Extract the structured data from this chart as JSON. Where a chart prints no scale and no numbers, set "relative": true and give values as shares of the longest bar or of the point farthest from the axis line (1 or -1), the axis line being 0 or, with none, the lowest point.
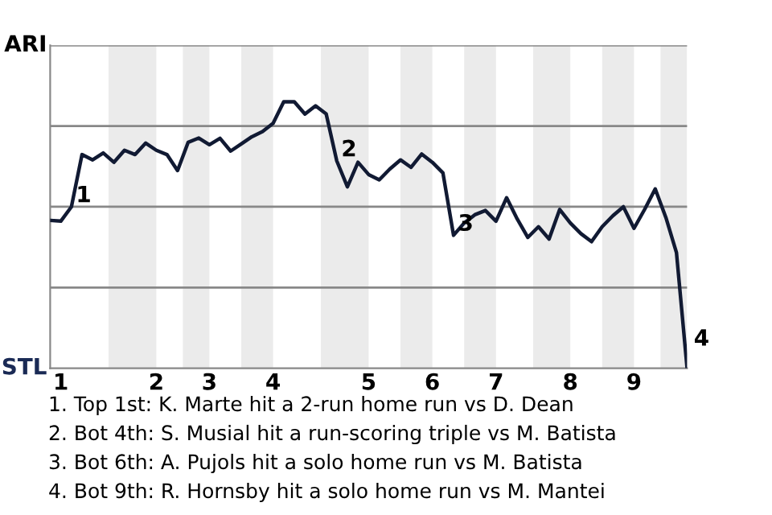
{
  "chart_data": {
    "type": "line",
    "relative": true,
    "categories": [
      null,
      "1",
      null,
      null,
      null,
      null,
      null,
      null,
      null,
      null,
      "2",
      null,
      null,
      null,
      null,
      "3",
      null,
      null,
      null,
      null,
      null,
      "4",
      null,
      null,
      null,
      null,
      null,
      null,
      null,
      null,
      "5",
      null,
      null,
      null,
      null,
      null,
      "6",
      null,
      null,
      null,
      null,
      null,
      "7",
      null,
      null,
      null,
      null,
      null,
      null,
      "8",
      null,
      null,
      null,
      null,
      null,
      "9",
      null,
      null,
      null,
      null,
      null
    ],
    "series": [
      {
        "color": "#111a33",
        "values": [
          0.555,
          0.552,
          0.606,
          0.802,
          0.782,
          0.808,
          0.773,
          0.818,
          0.802,
          0.845,
          0.818,
          0.802,
          0.742,
          0.848,
          0.864,
          0.839,
          0.863,
          0.815,
          0.842,
          0.869,
          0.888,
          0.919,
          1,
          1,
          0.954,
          0.985,
          0.955,
          0.778,
          0.681,
          0.773,
          0.727,
          0.707,
          0.748,
          0.782,
          0.754,
          0.804,
          0.773,
          0.733,
          0.499,
          0.545,
          0.576,
          0.592,
          0.552,
          0.64,
          0.56,
          0.491,
          0.531,
          0.485,
          0.596,
          0.545,
          0.505,
          0.475,
          0.531,
          0.572,
          0.606,
          0.525,
          0.596,
          0.673,
          0.566,
          0.434,
          0
        ]
      }
    ],
    "marker": "none",
    "line_style": "solid",
    "ref_lines": [
      {
        "axis": "y",
        "value": 0.303,
        "color": "#888888"
      },
      {
        "axis": "y",
        "value": 0.606,
        "color": "#888888"
      },
      {
        "axis": "y",
        "value": 0.909,
        "color": "#888888"
      },
      {
        "axis": "y",
        "value": 1.212,
        "color": "#888888"
      }
    ],
    "annotations": [
      "ARI",
      "STL",
      {
        "text": "1",
        "y": 0.606
      },
      {
        "text": "2",
        "y": 0.778
      },
      {
        "text": "3",
        "y": 0.499
      },
      "4",
      "1. Top 1st: K. Marte hit a 2-run home run vs D. Dean",
      "2. Bot 4th: S. Musial hit a run-scoring triple vs M. Batista",
      "3. Bot 6th: A. Pujols hit a solo home run vs M. Batista",
      "4. Bot 9th: R. Hornsby hit a solo home run vs M. Mantei"
    ]
  }
}
